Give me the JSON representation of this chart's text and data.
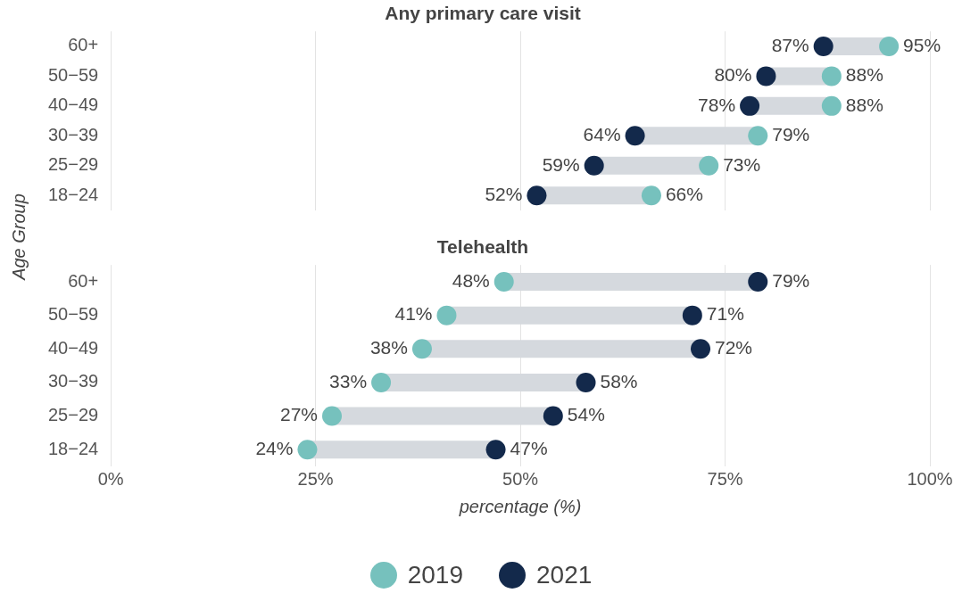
{
  "chart_data": [
    {
      "type": "scatter",
      "title": "Any primary care visit",
      "ylabel": "Age Group",
      "orientation": "horizontal",
      "categories": [
        "60+",
        "50−59",
        "40−49",
        "30−39",
        "25−29",
        "18−24"
      ],
      "series": [
        {
          "color": "#76c1bd",
          "values": [
            95,
            88,
            88,
            79,
            73,
            66
          ],
          "value_labels": [
            "95%",
            "88%",
            "88%",
            "79%",
            "73%",
            "66%"
          ]
        },
        {
          "color": "#13294b",
          "values": [
            87,
            80,
            78,
            64,
            59,
            52
          ],
          "value_labels": [
            "87%",
            "80%",
            "78%",
            "64%",
            "59%",
            "52%"
          ]
        }
      ],
      "xlim": [
        0,
        100
      ],
      "xticks": [
        {
          "value": 0,
          "label": null
        },
        {
          "value": 25,
          "label": null
        },
        {
          "value": 50,
          "label": null
        },
        {
          "value": 75,
          "label": null
        },
        {
          "value": 100,
          "label": null
        }
      ],
      "grid": "x",
      "tick_labels": "y",
      "marker": "circle"
    },
    {
      "type": "scatter",
      "title": "Telehealth",
      "xlabel": "percentage (%)",
      "orientation": "horizontal",
      "categories": [
        "60+",
        "50−59",
        "40−49",
        "30−39",
        "25−29",
        "18−24"
      ],
      "series": [
        {
          "name": "2019",
          "color": "#76c1bd",
          "values": [
            48,
            41,
            38,
            33,
            27,
            24
          ],
          "value_labels": [
            "48%",
            "41%",
            "38%",
            "33%",
            "27%",
            "24%"
          ]
        },
        {
          "name": "2021",
          "color": "#13294b",
          "values": [
            79,
            71,
            72,
            58,
            54,
            47
          ],
          "value_labels": [
            "79%",
            "71%",
            "72%",
            "58%",
            "54%",
            "47%"
          ]
        }
      ],
      "xlim": [
        0,
        100
      ],
      "xticks": [
        {
          "value": 0,
          "label": "0%"
        },
        {
          "value": 25,
          "label": "25%"
        },
        {
          "value": 50,
          "label": "50%"
        },
        {
          "value": 75,
          "label": "75%"
        },
        {
          "value": 100,
          "label": "100%"
        }
      ],
      "grid": "x",
      "legend": "bottom",
      "marker": "circle"
    }
  ]
}
